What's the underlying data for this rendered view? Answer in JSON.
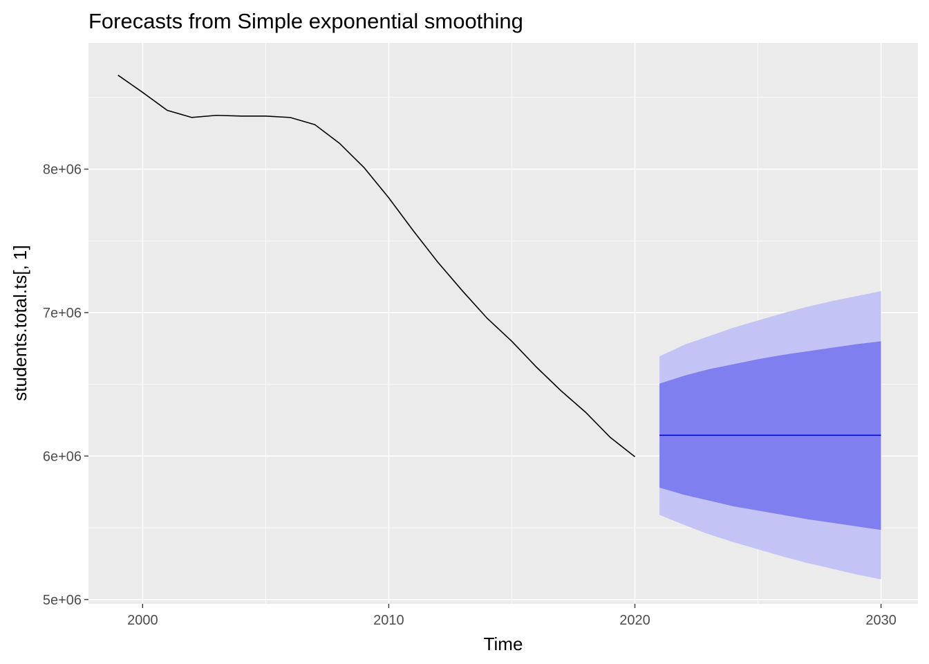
{
  "chart_data": {
    "type": "line",
    "title": "Forecasts from Simple exponential smoothing",
    "xlabel": "Time",
    "ylabel": "students.total.ts[, 1]",
    "xlim": [
      1997.8,
      2031.5
    ],
    "ylim": [
      4970000,
      8880000
    ],
    "x_ticks": [
      2000,
      2010,
      2020,
      2030
    ],
    "x_tick_labels": [
      "2000",
      "2010",
      "2020",
      "2030"
    ],
    "y_ticks": [
      5000000,
      6000000,
      7000000,
      8000000
    ],
    "y_tick_labels": [
      "5e+06",
      "6e+06",
      "7e+06",
      "8e+06"
    ],
    "grid": true,
    "colors": {
      "panel_background": "#ebebeb",
      "grid": "#ffffff",
      "series": "#000000",
      "forecast": "#0000ff",
      "band_80": "#7f7fef",
      "band_95": "#c3c3f5",
      "tick_label": "#4d4d4d"
    },
    "series": [
      {
        "x": [
          1999,
          2000,
          2001,
          2002,
          2003,
          2004,
          2005,
          2006,
          2007,
          2008,
          2009,
          2010,
          2011,
          2012,
          2013,
          2014,
          2015,
          2016,
          2017,
          2018,
          2019,
          2020
        ],
        "values": [
          8655000,
          8535000,
          8410000,
          8360000,
          8375000,
          8370000,
          8370000,
          8360000,
          8310000,
          8180000,
          8010000,
          7800000,
          7570000,
          7350000,
          7150000,
          6960000,
          6800000,
          6620000,
          6455000,
          6305000,
          6130000,
          5995000
        ]
      }
    ],
    "forecast": {
      "x": [
        2021,
        2022,
        2023,
        2024,
        2025,
        2026,
        2027,
        2028,
        2029,
        2030
      ],
      "mean": [
        6145000,
        6145000,
        6145000,
        6145000,
        6145000,
        6145000,
        6145000,
        6145000,
        6145000,
        6145000
      ],
      "lo80": [
        5780000,
        5730000,
        5690000,
        5650000,
        5620000,
        5590000,
        5560000,
        5535000,
        5510000,
        5485000
      ],
      "hi80": [
        6505000,
        6560000,
        6605000,
        6640000,
        6675000,
        6705000,
        6730000,
        6755000,
        6780000,
        6800000
      ],
      "lo95": [
        5590000,
        5520000,
        5455000,
        5400000,
        5350000,
        5300000,
        5255000,
        5215000,
        5175000,
        5140000
      ],
      "hi95": [
        6695000,
        6775000,
        6835000,
        6895000,
        6945000,
        6995000,
        7040000,
        7080000,
        7115000,
        7150000
      ]
    }
  }
}
